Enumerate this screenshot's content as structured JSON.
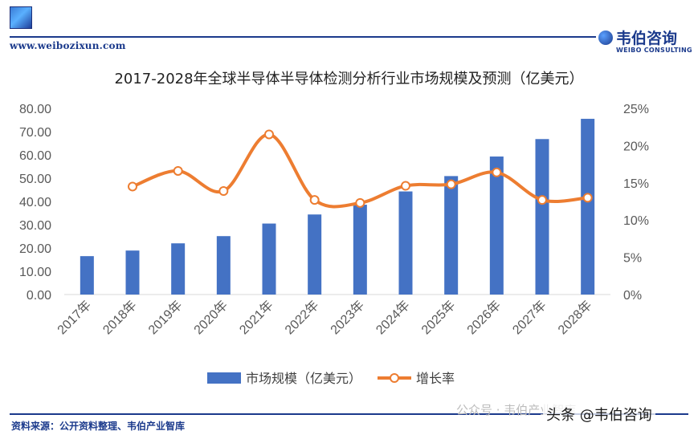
{
  "header": {
    "site_url": "www.weibozixun.com",
    "brand_cn": "韦伯咨询",
    "brand_en": "WEIBO CONSULTING"
  },
  "footer": {
    "source": "资料来源：公开资料整理、韦伯产业智库",
    "watermark_1": "公众号 · 韦伯产业智库",
    "watermark_2": "头条 @韦伯咨询"
  },
  "colors": {
    "bar": "#4472C4",
    "line": "#ED7D31",
    "brand": "#1B3A8C"
  },
  "chart_data": {
    "type": "bar",
    "title": "2017-2028年全球半导体半导体检测分析行业市场规模及预测（亿美元）",
    "categories": [
      "2017年",
      "2018年",
      "2019年",
      "2020年",
      "2021年",
      "2022年",
      "2023年",
      "2024年",
      "2025年",
      "2026年",
      "2027年",
      "2028年"
    ],
    "series": [
      {
        "name": "市场规模（亿美元）",
        "type": "bar",
        "axis": "left",
        "values": [
          16.5,
          18.9,
          22.0,
          25.1,
          30.5,
          34.4,
          38.6,
          44.3,
          50.9,
          59.3,
          66.8,
          75.5
        ]
      },
      {
        "name": "增长率",
        "type": "line",
        "axis": "right",
        "values": [
          null,
          14.5,
          16.6,
          13.9,
          21.5,
          12.7,
          12.3,
          14.6,
          14.8,
          16.4,
          12.7,
          13.0
        ]
      }
    ],
    "y_left": {
      "min": 0,
      "max": 80,
      "ticks": [
        "0.00",
        "10.00",
        "20.00",
        "30.00",
        "40.00",
        "50.00",
        "60.00",
        "70.00",
        "80.00"
      ]
    },
    "y_right": {
      "min": 0,
      "max": 25,
      "ticks": [
        "0%",
        "5%",
        "10%",
        "15%",
        "20%",
        "25%"
      ]
    },
    "grid": false,
    "legend": "bottom"
  }
}
